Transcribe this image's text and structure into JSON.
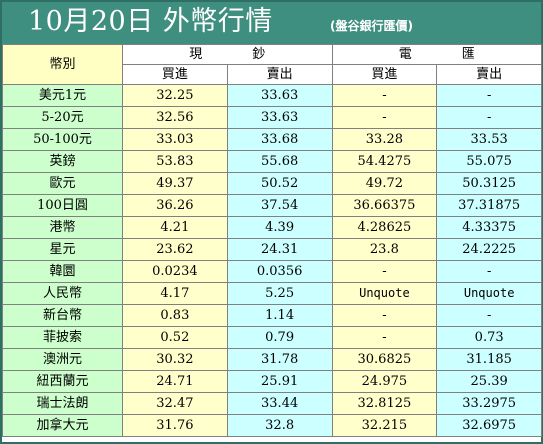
{
  "title": {
    "main": "10月20日 外幣行情",
    "sub": "(盤谷銀行匯價)"
  },
  "header": {
    "currency_label": "幣別",
    "cash_group": "現鈔",
    "wire_group": "電匯",
    "buy": "買進",
    "sell": "賣出"
  },
  "rows": [
    {
      "name": "美元1元",
      "cash_buy": "32.25",
      "cash_sell": "33.63",
      "wire_buy": "-",
      "wire_sell": "-"
    },
    {
      "name": "5-20元",
      "cash_buy": "32.56",
      "cash_sell": "33.63",
      "wire_buy": "-",
      "wire_sell": "-"
    },
    {
      "name": "50-100元",
      "cash_buy": "33.03",
      "cash_sell": "33.68",
      "wire_buy": "33.28",
      "wire_sell": "33.53"
    },
    {
      "name": "英鎊",
      "cash_buy": "53.83",
      "cash_sell": "55.68",
      "wire_buy": "54.4275",
      "wire_sell": "55.075"
    },
    {
      "name": "歐元",
      "cash_buy": "49.37",
      "cash_sell": "50.52",
      "wire_buy": "49.72",
      "wire_sell": "50.3125"
    },
    {
      "name": "100日圓",
      "cash_buy": "36.26",
      "cash_sell": "37.54",
      "wire_buy": "36.66375",
      "wire_sell": "37.31875"
    },
    {
      "name": "港幣",
      "cash_buy": "4.21",
      "cash_sell": "4.39",
      "wire_buy": "4.28625",
      "wire_sell": "4.33375"
    },
    {
      "name": "星元",
      "cash_buy": "23.62",
      "cash_sell": "24.31",
      "wire_buy": "23.8",
      "wire_sell": "24.2225"
    },
    {
      "name": "韓圜",
      "cash_buy": "0.0234",
      "cash_sell": "0.0356",
      "wire_buy": "-",
      "wire_sell": "-"
    },
    {
      "name": "人民幣",
      "cash_buy": "4.17",
      "cash_sell": "5.25",
      "wire_buy": "Unquote",
      "wire_sell": "Unquote"
    },
    {
      "name": "新台幣",
      "cash_buy": "0.83",
      "cash_sell": "1.14",
      "wire_buy": "-",
      "wire_sell": "-"
    },
    {
      "name": "菲披索",
      "cash_buy": "0.52",
      "cash_sell": "0.79",
      "wire_buy": "-",
      "wire_sell": "0.73"
    },
    {
      "name": "澳洲元",
      "cash_buy": "30.32",
      "cash_sell": "31.78",
      "wire_buy": "30.6825",
      "wire_sell": "31.185"
    },
    {
      "name": "紐西蘭元",
      "cash_buy": "24.71",
      "cash_sell": "25.91",
      "wire_buy": "24.975",
      "wire_sell": "25.39"
    },
    {
      "name": "瑞士法朗",
      "cash_buy": "32.47",
      "cash_sell": "33.44",
      "wire_buy": "32.8125",
      "wire_sell": "33.2975"
    },
    {
      "name": "加拿大元",
      "cash_buy": "31.76",
      "cash_sell": "32.8",
      "wire_buy": "32.215",
      "wire_sell": "32.6975"
    }
  ],
  "colors": {
    "title_bg": "#3f8f80",
    "title_text": "#ffffff",
    "currency_col": "#ccffcc",
    "buy_col": "#ffffcc",
    "sell_col": "#ccffff",
    "header_label": "#ffffc4",
    "border": "#808080"
  }
}
